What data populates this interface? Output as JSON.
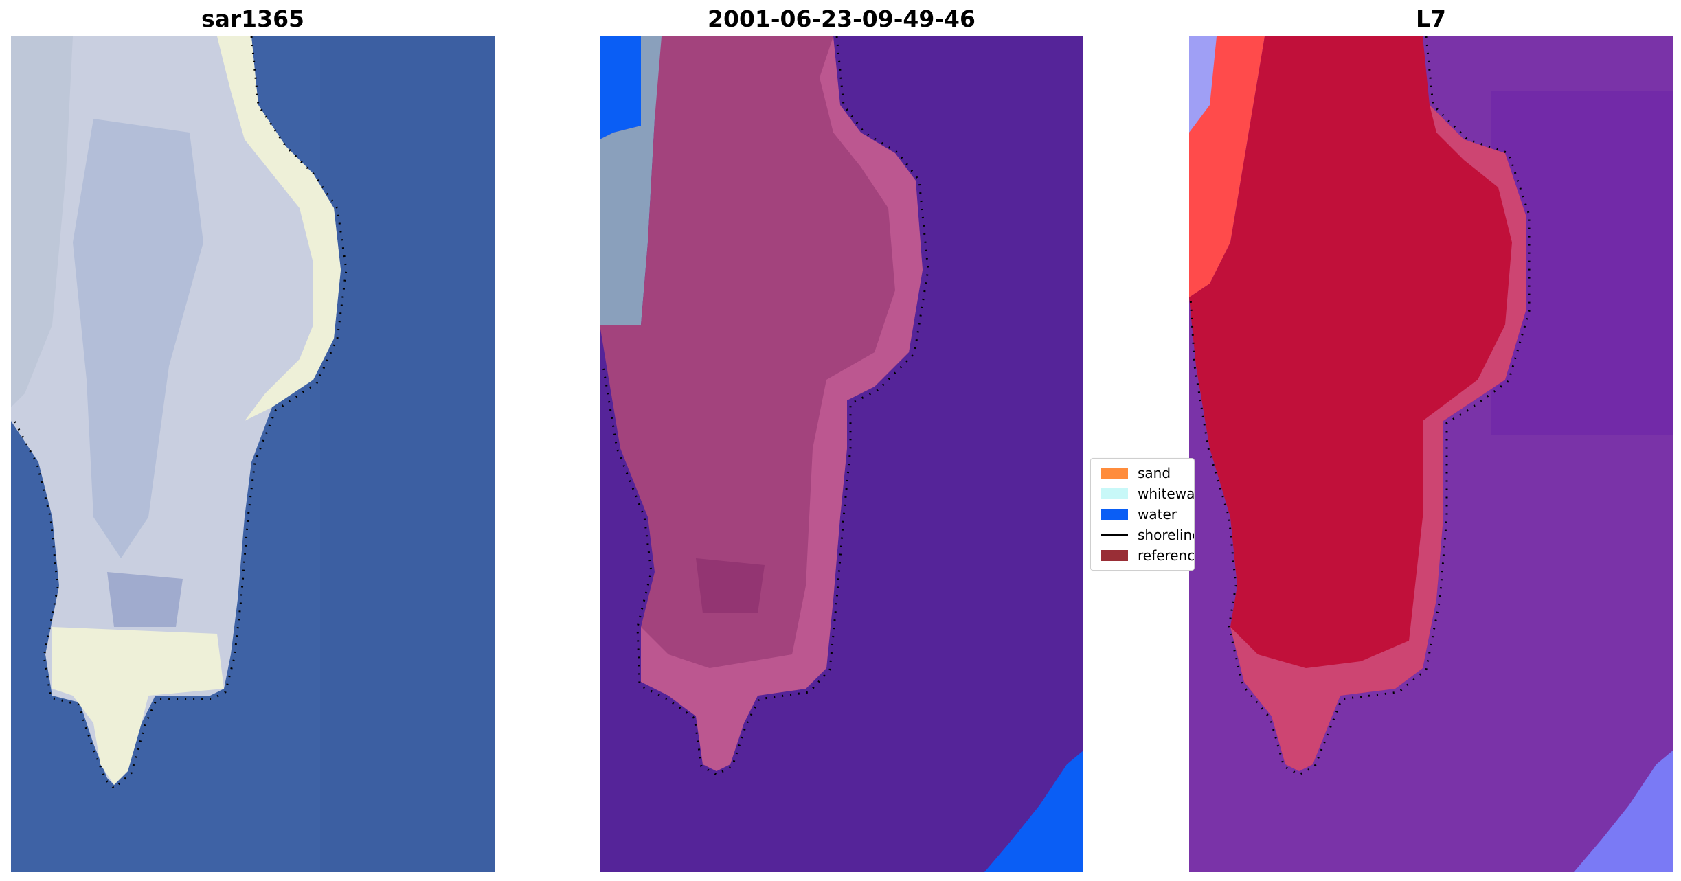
{
  "panels": [
    {
      "title": "sar1365"
    },
    {
      "title": "2001-06-23-09-49-46"
    },
    {
      "title": "L7"
    }
  ],
  "legend": {
    "items": [
      {
        "label": "sand",
        "color": "#ff8c3c",
        "kind": "patch"
      },
      {
        "label": "whitewater",
        "color": "#c8f8f8",
        "kind": "patch"
      },
      {
        "label": "water",
        "color": "#0a5ef5",
        "kind": "patch"
      },
      {
        "label": "shoreline",
        "color": "#000000",
        "kind": "line"
      },
      {
        "label": "reference",
        "color": "#992e36",
        "kind": "patch"
      }
    ]
  },
  "colors": {
    "sea_rgb": "#3e62a5",
    "island_rgb": "#c9cfe0",
    "island_bright": "#eef0d8",
    "classified_water": "#552499",
    "classified_island": "#a3437d",
    "classified_island_edge": "#c25d95",
    "mndwi_water": "#7a33a8",
    "mndwi_island": "#c1103a",
    "mndwi_edge": "#d25c8a"
  }
}
